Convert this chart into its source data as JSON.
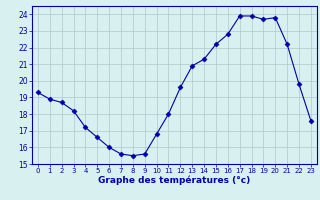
{
  "hours": [
    0,
    1,
    2,
    3,
    4,
    5,
    6,
    7,
    8,
    9,
    10,
    11,
    12,
    13,
    14,
    15,
    16,
    17,
    18,
    19,
    20,
    21,
    22,
    23
  ],
  "temperatures": [
    19.3,
    18.9,
    18.7,
    18.2,
    17.2,
    16.6,
    16.0,
    15.6,
    15.5,
    15.6,
    16.8,
    18.0,
    19.6,
    20.9,
    21.3,
    22.2,
    22.8,
    23.9,
    23.9,
    23.7,
    23.8,
    22.2,
    19.8,
    17.6
  ],
  "line_color": "#0000aa",
  "marker": "D",
  "marker_size": 2.5,
  "bg_color": "#d8f0f0",
  "grid_color": "#b0c8c8",
  "xlabel": "Graphe des températures (°c)",
  "ylim": [
    15,
    24.5
  ],
  "yticks": [
    15,
    16,
    17,
    18,
    19,
    20,
    21,
    22,
    23,
    24
  ],
  "xticks": [
    0,
    1,
    2,
    3,
    4,
    5,
    6,
    7,
    8,
    9,
    10,
    11,
    12,
    13,
    14,
    15,
    16,
    17,
    18,
    19,
    20,
    21,
    22,
    23
  ],
  "spine_color": "#0000aa",
  "tick_color": "#0000aa",
  "label_color": "#0000aa"
}
